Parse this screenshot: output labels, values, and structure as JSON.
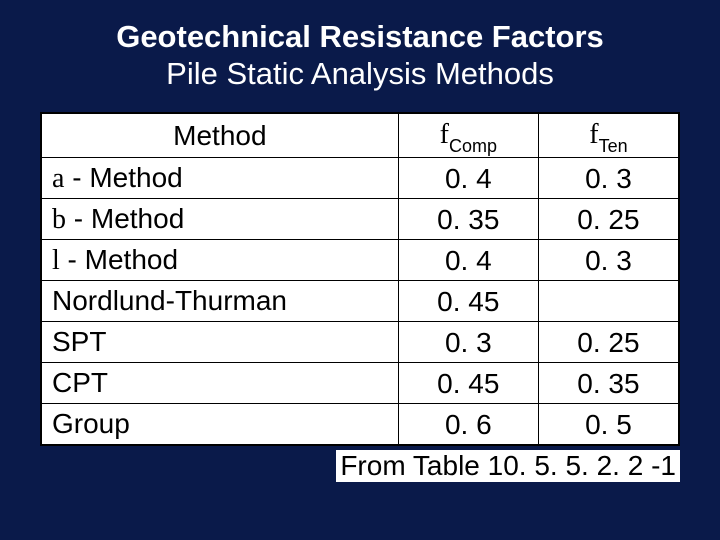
{
  "colors": {
    "background": "#0a1a4a",
    "text_on_dark": "#ffffff",
    "table_bg": "#ffffff",
    "table_text": "#000000",
    "table_border": "#000000"
  },
  "typography": {
    "font_family": "Arial",
    "title_fontsize_pt": 23,
    "title_weight_line1": 700,
    "title_weight_line2": 400,
    "cell_fontsize_pt": 21,
    "subscript_fontsize_pt": 14
  },
  "title": {
    "line1": "Geotechnical Resistance Factors",
    "line2": "Pile Static Analysis Methods"
  },
  "table": {
    "type": "table",
    "column_widths_pct": [
      56,
      22,
      22
    ],
    "headers": {
      "method": "Method",
      "comp_symbol": "f",
      "comp_sub": "Comp",
      "ten_symbol": "f",
      "ten_sub": "Ten"
    },
    "rows": [
      {
        "greek": "a",
        "label": " - Method",
        "comp": "0. 4",
        "ten": "0. 3"
      },
      {
        "greek": "b",
        "label": " - Method",
        "comp": "0. 35",
        "ten": "0. 25"
      },
      {
        "greek": "l",
        "label": " - Method",
        "comp": "0. 4",
        "ten": "0. 3"
      },
      {
        "greek": "",
        "label": "Nordlund-Thurman",
        "comp": "0. 45",
        "ten": ""
      },
      {
        "greek": "",
        "label": "SPT",
        "comp": "0. 3",
        "ten": "0. 25"
      },
      {
        "greek": "",
        "label": "CPT",
        "comp": "0. 45",
        "ten": "0. 35"
      },
      {
        "greek": "",
        "label": "Group",
        "comp": "0. 6",
        "ten": "0. 5"
      }
    ]
  },
  "source": "From Table 10. 5. 5. 2. 2 -1"
}
